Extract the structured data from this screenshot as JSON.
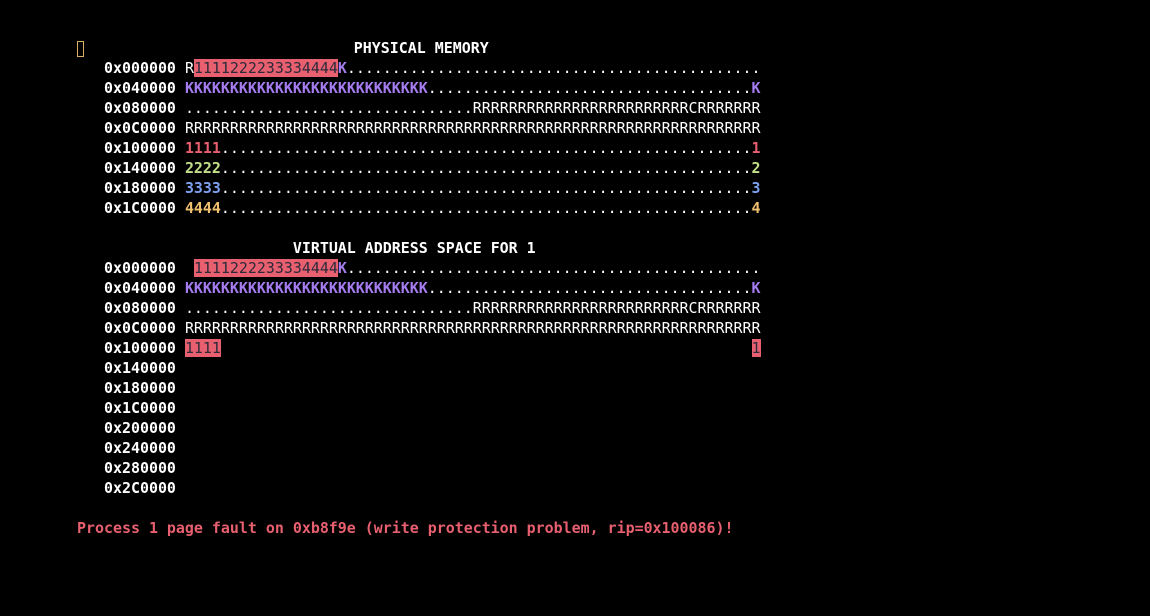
{
  "colors": {
    "default": "#ffffff",
    "p1": "#e8606f",
    "p2": "#c4e08a",
    "p3": "#7ea0f0",
    "p4": "#f0c070",
    "kernel": "#a57cf0",
    "highlight_bg": "#e8606f",
    "highlight_fg": "#2a2a3a"
  },
  "cursor_icon": "block-cursor",
  "physical": {
    "title": "PHYSICAL MEMORY",
    "rows": [
      {
        "addr": "0x000000",
        "segs": [
          {
            "t": "R",
            "c": "default"
          },
          {
            "t": "1111222233334444",
            "c": "highlight_fg",
            "bg": "highlight_bg"
          },
          {
            "t": "K",
            "c": "kernel"
          },
          {
            "t": "..............................................",
            "c": "default"
          }
        ]
      },
      {
        "addr": "0x040000",
        "segs": [
          {
            "t": "KKKKKKKKKKKKKKKKKKKKKKKKKKK",
            "c": "kernel"
          },
          {
            "t": "....................................",
            "c": "default"
          },
          {
            "t": "K",
            "c": "kernel"
          }
        ]
      },
      {
        "addr": "0x080000",
        "segs": [
          {
            "t": "................................RRRRRRRRRRRRRRRRRRRRRRRRCRRRRRRR",
            "c": "default"
          }
        ]
      },
      {
        "addr": "0x0C0000",
        "segs": [
          {
            "t": "RRRRRRRRRRRRRRRRRRRRRRRRRRRRRRRRRRRRRRRRRRRRRRRRRRRRRRRRRRRRRRRR",
            "c": "default"
          }
        ]
      },
      {
        "addr": "0x100000",
        "segs": [
          {
            "t": "1111",
            "c": "p1"
          },
          {
            "t": "...........................................................",
            "c": "default"
          },
          {
            "t": "1",
            "c": "p1"
          }
        ]
      },
      {
        "addr": "0x140000",
        "segs": [
          {
            "t": "2222",
            "c": "p2"
          },
          {
            "t": "...........................................................",
            "c": "default"
          },
          {
            "t": "2",
            "c": "p2"
          }
        ]
      },
      {
        "addr": "0x180000",
        "segs": [
          {
            "t": "3333",
            "c": "p3"
          },
          {
            "t": "...........................................................",
            "c": "default"
          },
          {
            "t": "3",
            "c": "p3"
          }
        ]
      },
      {
        "addr": "0x1C0000",
        "segs": [
          {
            "t": "4444",
            "c": "p4"
          },
          {
            "t": "...........................................................",
            "c": "default"
          },
          {
            "t": "4",
            "c": "p4"
          }
        ]
      }
    ]
  },
  "virtual": {
    "title": "VIRTUAL ADDRESS SPACE FOR 1",
    "rows": [
      {
        "addr": "0x000000",
        "segs": [
          {
            "t": " ",
            "c": "default"
          },
          {
            "t": "1111222233334444",
            "c": "highlight_fg",
            "bg": "highlight_bg"
          },
          {
            "t": "K",
            "c": "kernel"
          },
          {
            "t": "..............................................",
            "c": "default"
          }
        ]
      },
      {
        "addr": "0x040000",
        "segs": [
          {
            "t": "KKKKKKKKKKKKKKKKKKKKKKKKKKK",
            "c": "kernel"
          },
          {
            "t": "....................................",
            "c": "default"
          },
          {
            "t": "K",
            "c": "kernel"
          }
        ]
      },
      {
        "addr": "0x080000",
        "segs": [
          {
            "t": "................................RRRRRRRRRRRRRRRRRRRRRRRRCRRRRRRR",
            "c": "default"
          }
        ]
      },
      {
        "addr": "0x0C0000",
        "segs": [
          {
            "t": "RRRRRRRRRRRRRRRRRRRRRRRRRRRRRRRRRRRRRRRRRRRRRRRRRRRRRRRRRRRRRRRR",
            "c": "default"
          }
        ]
      },
      {
        "addr": "0x100000",
        "segs": [
          {
            "t": "1111",
            "c": "highlight_fg",
            "bg": "highlight_bg"
          },
          {
            "t": "                                                           ",
            "c": "default"
          },
          {
            "t": "1",
            "c": "highlight_fg",
            "bg": "highlight_bg"
          }
        ]
      },
      {
        "addr": "0x140000",
        "segs": []
      },
      {
        "addr": "0x180000",
        "segs": []
      },
      {
        "addr": "0x1C0000",
        "segs": []
      },
      {
        "addr": "0x200000",
        "segs": []
      },
      {
        "addr": "0x240000",
        "segs": []
      },
      {
        "addr": "0x280000",
        "segs": []
      },
      {
        "addr": "0x2C0000",
        "segs": []
      }
    ]
  },
  "error_message": "Process 1 page fault on 0xb8f9e (write protection problem, rip=0x100086)!"
}
